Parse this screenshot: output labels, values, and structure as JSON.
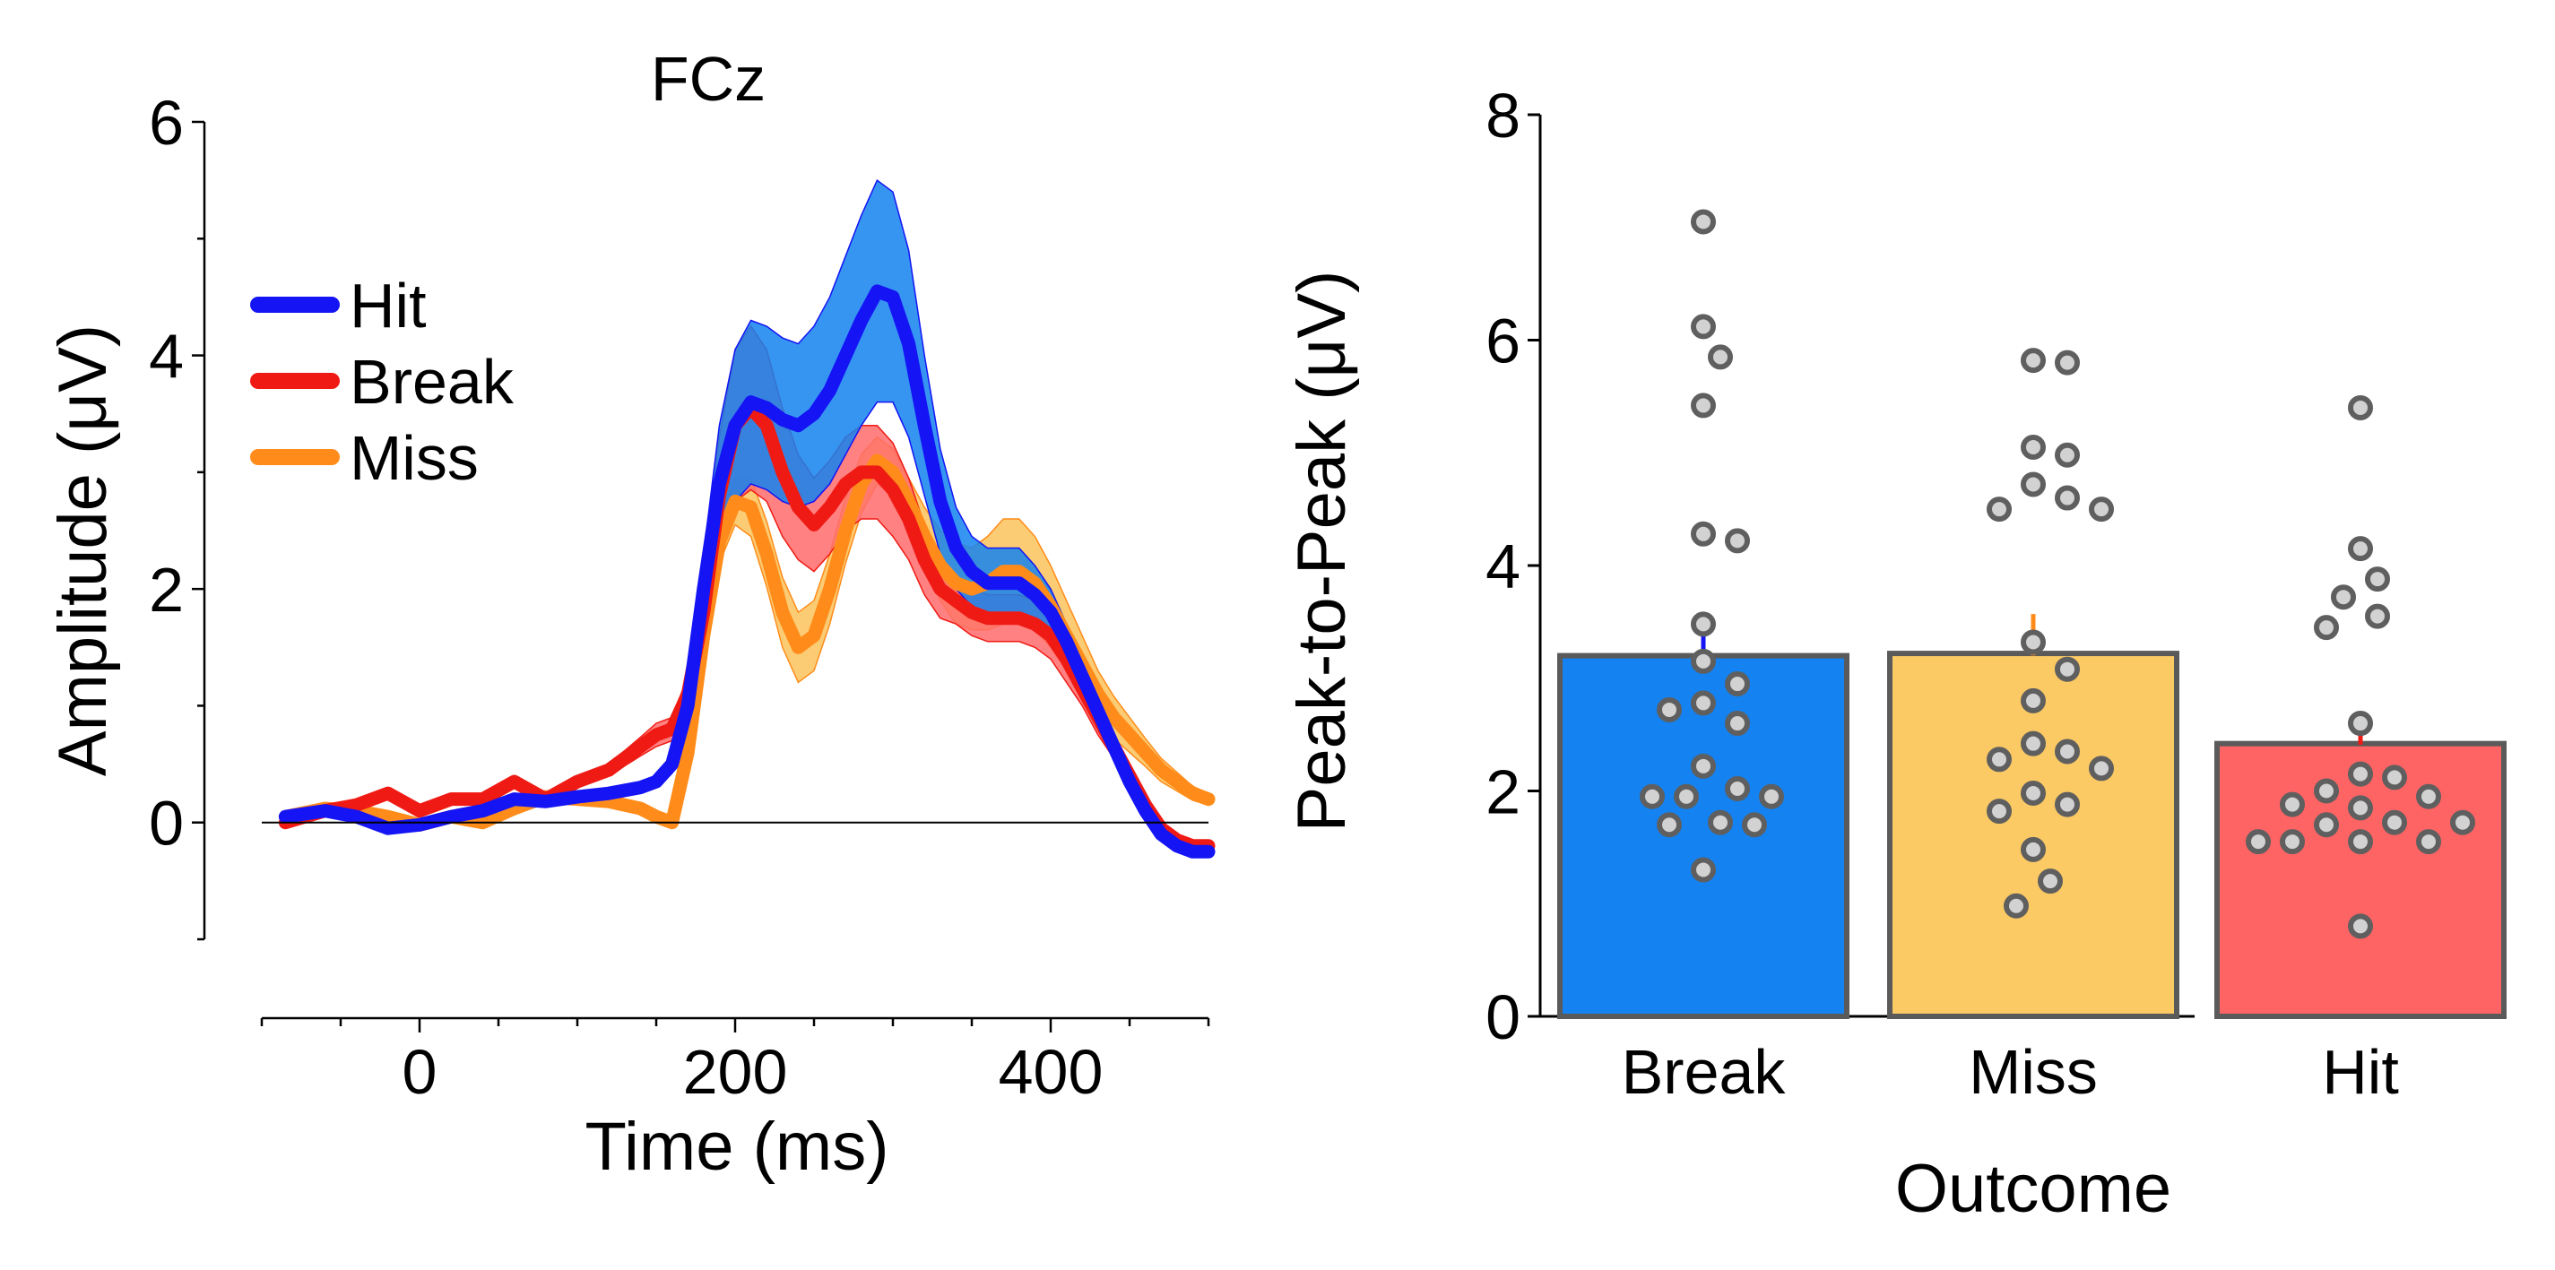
{
  "chart_data": [
    {
      "type": "line",
      "title": "FCz",
      "xlabel": "Time (ms)",
      "ylabel": "Amplitude (μV)",
      "xlim": [
        -100,
        500
      ],
      "ylim": [
        -1,
        6
      ],
      "xticks": [
        0,
        200,
        400
      ],
      "yticks": [
        0,
        2,
        4,
        6
      ],
      "legend": "upper-left",
      "series": [
        {
          "name": "Miss",
          "color": "#FF8C1A",
          "band_color": "#FCC35C",
          "x": [
            -85,
            -60,
            -40,
            -20,
            0,
            20,
            40,
            60,
            80,
            100,
            120,
            140,
            150,
            160,
            170,
            180,
            190,
            200,
            210,
            220,
            230,
            240,
            250,
            260,
            270,
            280,
            290,
            300,
            310,
            320,
            330,
            340,
            350,
            360,
            370,
            380,
            390,
            400,
            410,
            420,
            430,
            440,
            450,
            460,
            470,
            480,
            490,
            500
          ],
          "y": [
            0.05,
            0.12,
            0.1,
            0.05,
            -0.02,
            0.05,
            0.0,
            0.12,
            0.22,
            0.2,
            0.18,
            0.12,
            0.05,
            0.0,
            0.6,
            1.6,
            2.4,
            2.75,
            2.7,
            2.3,
            1.8,
            1.5,
            1.6,
            2.0,
            2.5,
            2.9,
            3.1,
            3.0,
            2.75,
            2.45,
            2.2,
            2.05,
            2.0,
            2.05,
            2.15,
            2.15,
            2.05,
            1.85,
            1.6,
            1.35,
            1.1,
            0.9,
            0.75,
            0.6,
            0.45,
            0.35,
            0.25,
            0.2
          ],
          "sem": [
            0.05,
            0.05,
            0.05,
            0.05,
            0.05,
            0.05,
            0.05,
            0.05,
            0.05,
            0.05,
            0.05,
            0.05,
            0.05,
            0.05,
            0.1,
            0.15,
            0.18,
            0.2,
            0.25,
            0.28,
            0.3,
            0.3,
            0.3,
            0.3,
            0.28,
            0.25,
            0.2,
            0.2,
            0.2,
            0.25,
            0.3,
            0.35,
            0.35,
            0.4,
            0.45,
            0.45,
            0.4,
            0.35,
            0.3,
            0.25,
            0.2,
            0.18,
            0.15,
            0.12,
            0.1,
            0.08,
            0.06,
            0.05
          ]
        },
        {
          "name": "Break",
          "color": "#F01A14",
          "band_color": "#FF6B6B",
          "x": [
            -85,
            -60,
            -40,
            -20,
            0,
            20,
            40,
            60,
            80,
            100,
            120,
            140,
            150,
            160,
            170,
            180,
            190,
            200,
            210,
            220,
            230,
            240,
            250,
            260,
            270,
            280,
            290,
            300,
            310,
            320,
            330,
            340,
            350,
            360,
            370,
            380,
            390,
            400,
            410,
            420,
            430,
            440,
            450,
            460,
            470,
            480,
            490,
            500
          ],
          "y": [
            0.0,
            0.1,
            0.15,
            0.25,
            0.1,
            0.2,
            0.2,
            0.35,
            0.2,
            0.35,
            0.45,
            0.65,
            0.75,
            0.8,
            1.1,
            1.8,
            2.8,
            3.4,
            3.55,
            3.4,
            3.0,
            2.7,
            2.55,
            2.7,
            2.9,
            3.0,
            3.0,
            2.85,
            2.6,
            2.25,
            2.0,
            1.9,
            1.8,
            1.75,
            1.75,
            1.75,
            1.7,
            1.6,
            1.4,
            1.15,
            0.9,
            0.65,
            0.4,
            0.15,
            -0.05,
            -0.15,
            -0.2,
            -0.2
          ],
          "sem": [
            0.05,
            0.05,
            0.05,
            0.05,
            0.05,
            0.05,
            0.05,
            0.05,
            0.05,
            0.05,
            0.05,
            0.08,
            0.1,
            0.1,
            0.15,
            0.3,
            0.5,
            0.65,
            0.7,
            0.65,
            0.55,
            0.45,
            0.4,
            0.4,
            0.4,
            0.4,
            0.4,
            0.4,
            0.35,
            0.3,
            0.25,
            0.2,
            0.2,
            0.2,
            0.2,
            0.2,
            0.2,
            0.2,
            0.2,
            0.15,
            0.15,
            0.1,
            0.1,
            0.08,
            0.05,
            0.05,
            0.05,
            0.05
          ]
        },
        {
          "name": "Hit",
          "color": "#1414F5",
          "band_color": "#1482F0",
          "x": [
            -85,
            -60,
            -40,
            -20,
            0,
            20,
            40,
            60,
            80,
            100,
            120,
            140,
            150,
            160,
            170,
            180,
            190,
            200,
            210,
            220,
            230,
            240,
            250,
            260,
            270,
            280,
            290,
            300,
            310,
            320,
            330,
            340,
            350,
            360,
            370,
            380,
            390,
            400,
            410,
            420,
            430,
            440,
            450,
            460,
            470,
            480,
            490,
            500
          ],
          "y": [
            0.05,
            0.1,
            0.05,
            -0.05,
            -0.02,
            0.05,
            0.1,
            0.2,
            0.18,
            0.22,
            0.25,
            0.3,
            0.35,
            0.5,
            1.0,
            2.0,
            2.9,
            3.4,
            3.6,
            3.55,
            3.45,
            3.4,
            3.5,
            3.7,
            4.0,
            4.3,
            4.55,
            4.5,
            4.1,
            3.4,
            2.75,
            2.35,
            2.15,
            2.05,
            2.05,
            2.05,
            1.95,
            1.8,
            1.55,
            1.25,
            0.95,
            0.65,
            0.35,
            0.1,
            -0.1,
            -0.2,
            -0.25,
            -0.25
          ],
          "sem": [
            0.03,
            0.03,
            0.03,
            0.03,
            0.03,
            0.03,
            0.03,
            0.03,
            0.03,
            0.03,
            0.03,
            0.05,
            0.05,
            0.08,
            0.15,
            0.3,
            0.5,
            0.65,
            0.7,
            0.7,
            0.7,
            0.7,
            0.75,
            0.8,
            0.85,
            0.9,
            0.95,
            0.9,
            0.8,
            0.6,
            0.45,
            0.35,
            0.3,
            0.3,
            0.3,
            0.3,
            0.25,
            0.2,
            0.15,
            0.12,
            0.1,
            0.08,
            0.06,
            0.05,
            0.05,
            0.05,
            0.05,
            0.05
          ]
        }
      ],
      "legend_order": [
        "Hit",
        "Break",
        "Miss"
      ],
      "baseline": 0
    },
    {
      "type": "bar",
      "title": "",
      "xlabel": "Outcome",
      "ylabel": "Peak-to-Peak (μV)",
      "ylim": [
        0,
        8
      ],
      "yticks": [
        0,
        2,
        4,
        6,
        8
      ],
      "categories": [
        "Break",
        "Miss",
        "Hit"
      ],
      "values": [
        3.2,
        3.22,
        2.42
      ],
      "errors": [
        0.35,
        0.35,
        0.2
      ],
      "colors": [
        "#1482F0",
        "#FCCA64",
        "#FF6464"
      ],
      "error_colors": [
        "#1414F5",
        "#FF8C1A",
        "#F01A14"
      ],
      "points": [
        [
          7.05,
          6.12,
          5.85,
          5.42,
          4.28,
          4.22,
          3.48,
          3.15,
          2.95,
          2.78,
          2.72,
          2.6,
          2.22,
          2.02,
          1.95,
          1.95,
          1.95,
          1.72,
          1.7,
          1.7,
          1.3
        ],
        [
          5.82,
          5.8,
          5.05,
          4.98,
          4.72,
          4.6,
          4.5,
          4.5,
          3.32,
          3.08,
          2.8,
          2.42,
          2.35,
          2.28,
          2.2,
          1.98,
          1.88,
          1.82,
          1.48,
          1.2,
          0.98
        ],
        [
          5.4,
          4.15,
          3.88,
          3.72,
          3.55,
          3.45,
          2.6,
          2.15,
          2.12,
          2.0,
          1.95,
          1.88,
          1.85,
          1.72,
          1.72,
          1.7,
          1.55,
          1.55,
          1.55,
          1.55,
          0.8
        ]
      ]
    }
  ]
}
